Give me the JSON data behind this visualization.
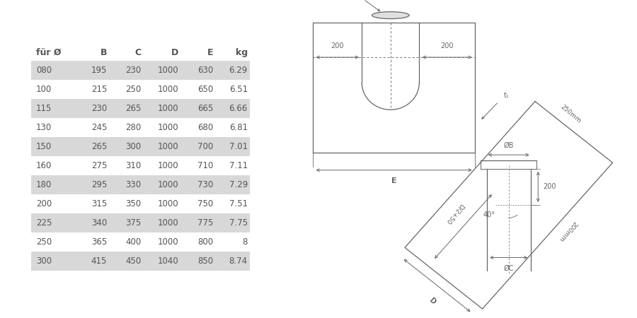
{
  "table_headers": [
    "für Ø",
    "B",
    "C",
    "D",
    "E",
    "kg"
  ],
  "table_rows": [
    [
      "080",
      "195",
      "230",
      "1000",
      "630",
      "6.29"
    ],
    [
      "100",
      "215",
      "250",
      "1000",
      "650",
      "6.51"
    ],
    [
      "115",
      "230",
      "265",
      "1000",
      "665",
      "6.66"
    ],
    [
      "130",
      "245",
      "280",
      "1000",
      "680",
      "6.81"
    ],
    [
      "150",
      "265",
      "300",
      "1000",
      "700",
      "7.01"
    ],
    [
      "160",
      "275",
      "310",
      "1000",
      "710",
      "7.11"
    ],
    [
      "180",
      "295",
      "330",
      "1000",
      "730",
      "7.29"
    ],
    [
      "200",
      "315",
      "350",
      "1000",
      "750",
      "7.51"
    ],
    [
      "225",
      "340",
      "375",
      "1000",
      "775",
      "7.75"
    ],
    [
      "250",
      "365",
      "400",
      "1000",
      "800",
      "8"
    ],
    [
      "300",
      "415",
      "450",
      "1040",
      "850",
      "8.74"
    ]
  ],
  "shaded_rows": [
    0,
    2,
    4,
    6,
    8,
    10
  ],
  "row_bg_color": "#d8d8d8",
  "header_color": "#555555",
  "text_color": "#555555",
  "bg_color": "#ffffff"
}
